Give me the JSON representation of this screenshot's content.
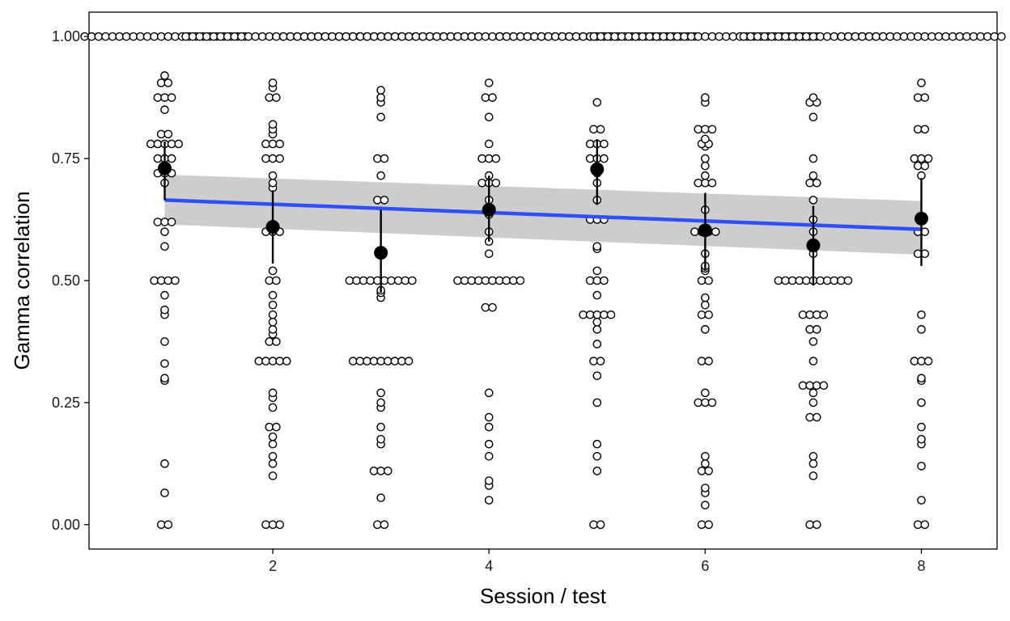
{
  "chart_data": {
    "type": "scatter",
    "title": "",
    "xlabel": "Session / test",
    "ylabel": "Gamma correlation",
    "xlim": [
      0.3,
      8.7
    ],
    "ylim": [
      -0.05,
      1.05
    ],
    "x_ticks": [
      2,
      4,
      6,
      8
    ],
    "x_tick_labels": [
      "2",
      "4",
      "6",
      "8"
    ],
    "y_ticks": [
      0,
      0.25,
      0.5,
      0.75,
      1
    ],
    "y_tick_labels": [
      "0.00",
      "0.25",
      "0.50",
      "0.75",
      "1.00"
    ],
    "grid": false,
    "legend": "none",
    "colors": {
      "points": "#000000",
      "means": "#000000",
      "trend": "#3050ff",
      "band": "#c8c8c8"
    },
    "observations": [
      {
        "x": 1,
        "values": [
          1,
          1,
          1,
          1,
          1,
          1,
          1,
          1,
          1,
          1,
          1,
          1,
          1,
          1,
          1,
          1,
          1,
          1,
          1,
          1,
          1,
          1,
          1,
          1,
          0.92,
          0.905,
          0.905,
          0.875,
          0.875,
          0.875,
          0.85,
          0.8,
          0.8,
          0.78,
          0.78,
          0.78,
          0.78,
          0.78,
          0.75,
          0.75,
          0.75,
          0.72,
          0.72,
          0.72,
          0.7,
          0.62,
          0.62,
          0.62,
          0.6,
          0.57,
          0.5,
          0.5,
          0.5,
          0.5,
          0.47,
          0.44,
          0.43,
          0.375,
          0.33,
          0.3,
          0.295,
          0.125,
          0.065,
          0,
          0
        ]
      },
      {
        "x": 2,
        "values": [
          1,
          1,
          1,
          1,
          1,
          1,
          1,
          1,
          1,
          1,
          1,
          1,
          1,
          1,
          1,
          1,
          1,
          1,
          1,
          1,
          1,
          1,
          1,
          1,
          1,
          1,
          0.905,
          0.895,
          0.875,
          0.875,
          0.82,
          0.81,
          0.8,
          0.78,
          0.78,
          0.78,
          0.75,
          0.75,
          0.75,
          0.715,
          0.7,
          0.69,
          0.6,
          0.6,
          0.6,
          0.52,
          0.5,
          0.5,
          0.47,
          0.45,
          0.43,
          0.415,
          0.4,
          0.39,
          0.375,
          0.375,
          0.335,
          0.335,
          0.335,
          0.335,
          0.335,
          0.27,
          0.26,
          0.24,
          0.2,
          0.2,
          0.18,
          0.165,
          0.14,
          0.125,
          0.1,
          0,
          0,
          0
        ]
      },
      {
        "x": 3,
        "values": [
          1,
          1,
          1,
          1,
          1,
          1,
          1,
          1,
          1,
          1,
          1,
          1,
          1,
          1,
          1,
          1,
          1,
          1,
          1,
          1,
          1,
          1,
          1,
          1,
          1,
          1,
          1,
          1,
          1,
          0.89,
          0.875,
          0.865,
          0.835,
          0.75,
          0.75,
          0.715,
          0.665,
          0.665,
          0.5,
          0.5,
          0.5,
          0.5,
          0.5,
          0.5,
          0.5,
          0.5,
          0.5,
          0.5,
          0.48,
          0.475,
          0.465,
          0.335,
          0.335,
          0.335,
          0.335,
          0.335,
          0.335,
          0.335,
          0.335,
          0.335,
          0.27,
          0.25,
          0.24,
          0.2,
          0.175,
          0.165,
          0.11,
          0.11,
          0.11,
          0.055,
          0,
          0
        ]
      },
      {
        "x": 4,
        "values": [
          1,
          1,
          1,
          1,
          1,
          1,
          1,
          1,
          1,
          1,
          1,
          1,
          1,
          1,
          1,
          1,
          1,
          1,
          1,
          1,
          1,
          1,
          1,
          1,
          1,
          1,
          1,
          1,
          1,
          1,
          1,
          1,
          1,
          1,
          1,
          1,
          1,
          1,
          0.905,
          0.875,
          0.875,
          0.835,
          0.78,
          0.75,
          0.75,
          0.75,
          0.715,
          0.7,
          0.7,
          0.7,
          0.665,
          0.635,
          0.6,
          0.58,
          0.555,
          0.5,
          0.5,
          0.5,
          0.5,
          0.5,
          0.5,
          0.5,
          0.5,
          0.5,
          0.5,
          0.445,
          0.445,
          0.27,
          0.22,
          0.2,
          0.165,
          0.14,
          0.09,
          0.08,
          0.05
        ]
      },
      {
        "x": 5,
        "values": [
          1,
          1,
          1,
          1,
          1,
          1,
          1,
          1,
          1,
          1,
          1,
          1,
          1,
          1,
          1,
          1,
          1,
          1,
          1,
          1,
          1,
          1,
          1,
          1,
          1,
          1,
          1,
          1,
          1,
          0.865,
          0.81,
          0.81,
          0.78,
          0.78,
          0.78,
          0.75,
          0.75,
          0.75,
          0.72,
          0.7,
          0.665,
          0.625,
          0.625,
          0.625,
          0.57,
          0.565,
          0.52,
          0.5,
          0.5,
          0.5,
          0.47,
          0.43,
          0.43,
          0.43,
          0.43,
          0.43,
          0.415,
          0.4,
          0.37,
          0.335,
          0.335,
          0.305,
          0.25,
          0.165,
          0.14,
          0.11,
          0,
          0
        ]
      },
      {
        "x": 6,
        "values": [
          1,
          1,
          1,
          1,
          1,
          1,
          1,
          1,
          1,
          1,
          1,
          1,
          1,
          1,
          1,
          1,
          1,
          1,
          1,
          1,
          1,
          1,
          1,
          1,
          1,
          1,
          1,
          1,
          1,
          1,
          1,
          1,
          1,
          0.875,
          0.865,
          0.81,
          0.81,
          0.81,
          0.79,
          0.78,
          0.78,
          0.775,
          0.75,
          0.735,
          0.715,
          0.7,
          0.7,
          0.7,
          0.645,
          0.6,
          0.6,
          0.6,
          0.6,
          0.555,
          0.53,
          0.525,
          0.52,
          0.5,
          0.5,
          0.465,
          0.45,
          0.43,
          0.43,
          0.4,
          0.335,
          0.335,
          0.27,
          0.25,
          0.25,
          0.25,
          0.14,
          0.125,
          0.11,
          0.11,
          0.075,
          0.065,
          0.04,
          0,
          0
        ]
      },
      {
        "x": 7,
        "values": [
          1,
          1,
          1,
          1,
          1,
          1,
          1,
          1,
          1,
          1,
          1,
          1,
          1,
          1,
          1,
          1,
          1,
          1,
          1,
          1,
          1,
          0.875,
          0.865,
          0.865,
          0.835,
          0.75,
          0.715,
          0.7,
          0.7,
          0.665,
          0.625,
          0.6,
          0.555,
          0.5,
          0.5,
          0.5,
          0.5,
          0.5,
          0.5,
          0.5,
          0.5,
          0.5,
          0.5,
          0.5,
          0.43,
          0.43,
          0.43,
          0.43,
          0.4,
          0.4,
          0.375,
          0.335,
          0.285,
          0.285,
          0.285,
          0.285,
          0.27,
          0.25,
          0.22,
          0.22,
          0.14,
          0.125,
          0.1,
          0,
          0
        ]
      },
      {
        "x": 8,
        "values": [
          1,
          1,
          1,
          1,
          1,
          1,
          1,
          1,
          1,
          1,
          1,
          1,
          1,
          1,
          1,
          1,
          1,
          1,
          1,
          1,
          1,
          1,
          1,
          1,
          0.905,
          0.875,
          0.875,
          0.81,
          0.81,
          0.75,
          0.75,
          0.75,
          0.735,
          0.735,
          0.715,
          0.6,
          0.6,
          0.555,
          0.555,
          0.43,
          0.4,
          0.335,
          0.335,
          0.335,
          0.3,
          0.295,
          0.25,
          0.2,
          0.175,
          0.165,
          0.12,
          0.05,
          0,
          0
        ]
      }
    ],
    "means": [
      {
        "x": 1,
        "mean": 0.73,
        "lower": 0.665,
        "upper": 0.785
      },
      {
        "x": 2,
        "mean": 0.61,
        "lower": 0.535,
        "upper": 0.685
      },
      {
        "x": 3,
        "mean": 0.557,
        "lower": 0.475,
        "upper": 0.645
      },
      {
        "x": 4,
        "mean": 0.645,
        "lower": 0.58,
        "upper": 0.715
      },
      {
        "x": 5,
        "mean": 0.728,
        "lower": 0.655,
        "upper": 0.79
      },
      {
        "x": 6,
        "mean": 0.603,
        "lower": 0.52,
        "upper": 0.68
      },
      {
        "x": 7,
        "mean": 0.572,
        "lower": 0.49,
        "upper": 0.653
      },
      {
        "x": 8,
        "mean": 0.627,
        "lower": 0.53,
        "upper": 0.71
      }
    ],
    "trend": {
      "x": [
        1,
        8
      ],
      "y": [
        0.665,
        0.605
      ],
      "band_lower": [
        0.615,
        0.553
      ],
      "band_upper": [
        0.717,
        0.663
      ]
    }
  }
}
